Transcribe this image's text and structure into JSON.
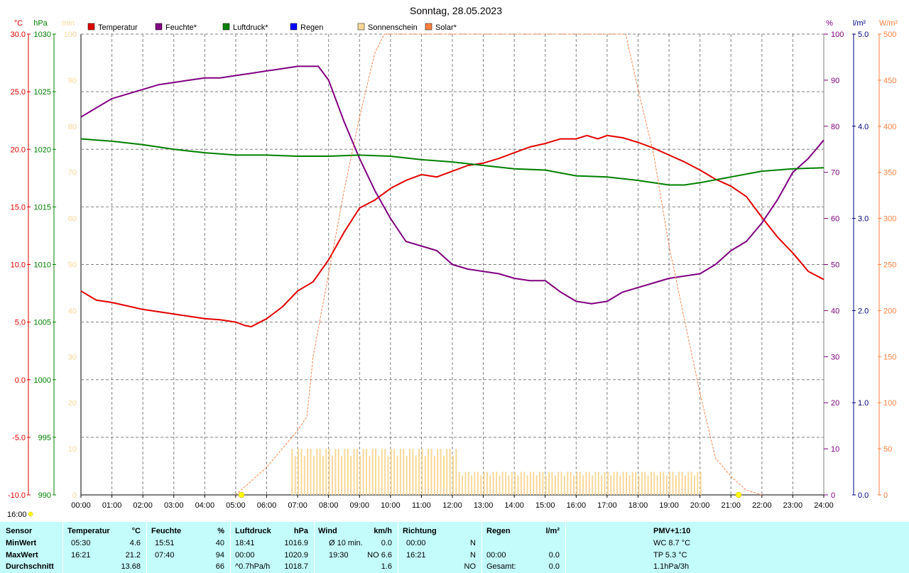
{
  "title": "Sonntag, 28.05.2023",
  "axis_units": {
    "temperature": "°C",
    "pressure": "hPa",
    "sunshine": "min",
    "humidity": "%",
    "rain": "l/m²",
    "solar": "W/m²"
  },
  "legend": [
    {
      "label": "Temperatur",
      "color": "#e00000"
    },
    {
      "label": "Feuchte*",
      "color": "#800080"
    },
    {
      "label": "Luftdruck*",
      "color": "#008000"
    },
    {
      "label": "Regen",
      "color": "#0000ff"
    },
    {
      "label": "Sonnenschein",
      "color": "#f8d898"
    },
    {
      "label": "Solar*",
      "color": "#ff8040"
    }
  ],
  "sunrise_label": "16:00",
  "chart_data": {
    "type": "line",
    "title": "Sonntag, 28.05.2023",
    "x_ticks": [
      "00:00",
      "01:00",
      "02:00",
      "03:00",
      "04:00",
      "05:00",
      "06:00",
      "07:00",
      "08:00",
      "09:00",
      "10:00",
      "11:00",
      "12:00",
      "13:00",
      "14:00",
      "15:00",
      "16:00",
      "17:00",
      "18:00",
      "19:00",
      "20:00",
      "21:00",
      "22:00",
      "23:00",
      "24:00"
    ],
    "xlim_hours": [
      0,
      24
    ],
    "grid": true,
    "legend_position": "top",
    "axes": {
      "temperature": {
        "ticks": [
          "30.0",
          "25.0",
          "20.0",
          "15.0",
          "10.0",
          "5.0",
          "0.0",
          "-5.0",
          "-10.0"
        ],
        "range": [
          -10,
          30
        ]
      },
      "pressure": {
        "ticks": [
          "1030",
          "1025",
          "1020",
          "1015",
          "1010",
          "1005",
          "1000",
          "995",
          "990"
        ],
        "range": [
          990,
          1030
        ]
      },
      "sunshine": {
        "ticks": [
          "100",
          "90",
          "80",
          "70",
          "60",
          "50",
          "40",
          "30",
          "20",
          "10",
          "0"
        ],
        "range": [
          0,
          100
        ]
      },
      "humidity": {
        "ticks": [
          "100",
          "90",
          "80",
          "70",
          "60",
          "50",
          "40",
          "30",
          "20",
          "10",
          "0"
        ],
        "range": [
          0,
          100
        ]
      },
      "rain": {
        "ticks": [
          "5.0",
          "4.0",
          "3.0",
          "2.0",
          "1.0",
          "0.0"
        ],
        "range": [
          0,
          5
        ]
      },
      "solar": {
        "ticks": [
          "500",
          "450",
          "400",
          "350",
          "300",
          "250",
          "200",
          "150",
          "100",
          "50",
          "0"
        ],
        "range": [
          0,
          500
        ]
      }
    },
    "series": [
      {
        "name": "Temperatur",
        "axis": "temperature",
        "color": "#e00000",
        "x": [
          0,
          0.5,
          1,
          1.5,
          2,
          2.5,
          3,
          3.5,
          4,
          4.5,
          5,
          5.3,
          5.5,
          6,
          6.5,
          7,
          7.5,
          8,
          8.5,
          9,
          9.5,
          10,
          10.5,
          11,
          11.5,
          12,
          12.5,
          13,
          13.5,
          14,
          14.5,
          15,
          15.5,
          16,
          16.35,
          16.7,
          17,
          17.5,
          18,
          18.5,
          19,
          19.5,
          20,
          20.5,
          21,
          21.5,
          22,
          22.5,
          23,
          23.5,
          24
        ],
        "y": [
          7.7,
          6.9,
          6.7,
          6.4,
          6.1,
          5.9,
          5.7,
          5.5,
          5.3,
          5.2,
          5.0,
          4.7,
          4.6,
          5.3,
          6.3,
          7.7,
          8.5,
          10.4,
          12.8,
          14.9,
          15.6,
          16.6,
          17.3,
          17.8,
          17.6,
          18.1,
          18.6,
          18.8,
          19.2,
          19.7,
          20.2,
          20.5,
          20.9,
          20.9,
          21.2,
          20.9,
          21.2,
          21.0,
          20.6,
          20.1,
          19.5,
          18.9,
          18.2,
          17.4,
          16.8,
          15.9,
          14.1,
          12.4,
          11.0,
          9.4,
          8.7
        ]
      },
      {
        "name": "Feuchte*",
        "axis": "humidity",
        "color": "#800080",
        "x": [
          0,
          0.5,
          1,
          1.5,
          2,
          2.5,
          3,
          3.5,
          4,
          4.5,
          5,
          5.5,
          6,
          6.5,
          7,
          7.5,
          7.67,
          8,
          8.5,
          9,
          9.5,
          10,
          10.5,
          11,
          11.5,
          12,
          12.5,
          13,
          13.5,
          14,
          14.5,
          15,
          15.5,
          16,
          16.5,
          17,
          17.5,
          18,
          18.5,
          19,
          19.5,
          20,
          20.5,
          21,
          21.5,
          22,
          22.5,
          23,
          23.5,
          24
        ],
        "y": [
          82,
          84,
          86,
          87,
          88,
          89,
          89.5,
          90,
          90.5,
          90.5,
          91,
          91.5,
          92,
          92.5,
          93,
          93,
          93,
          90,
          81,
          73,
          66,
          60,
          55,
          54,
          53,
          50,
          49,
          48.5,
          48,
          47,
          46.5,
          46.5,
          44,
          42,
          41.5,
          42,
          44,
          45,
          46,
          47,
          47.5,
          48,
          50,
          53,
          55,
          59,
          64,
          70,
          73,
          77
        ]
      },
      {
        "name": "Luftdruck*",
        "axis": "pressure",
        "color": "#008000",
        "x": [
          0,
          1,
          2,
          3,
          4,
          5,
          6,
          7,
          8,
          9,
          10,
          11,
          12,
          13,
          14,
          15,
          16,
          17,
          18,
          19,
          19.5,
          20,
          21,
          22,
          23,
          24
        ],
        "y": [
          1020.9,
          1020.7,
          1020.4,
          1020.0,
          1019.7,
          1019.5,
          1019.5,
          1019.4,
          1019.4,
          1019.5,
          1019.4,
          1019.1,
          1018.9,
          1018.6,
          1018.3,
          1018.2,
          1017.7,
          1017.6,
          1017.3,
          1016.9,
          1016.9,
          1017.1,
          1017.6,
          1018.1,
          1018.3,
          1018.4
        ]
      },
      {
        "name": "Solar*",
        "axis": "solar",
        "color": "#ff8040",
        "dashed": true,
        "x": [
          5,
          5.5,
          6,
          6.5,
          7,
          7.3,
          7.5,
          8,
          8.5,
          9,
          9.5,
          9.8,
          17.6,
          18,
          18.5,
          19,
          19.5,
          20,
          20.5,
          21,
          21.5,
          22
        ],
        "y": [
          0,
          15,
          30,
          50,
          70,
          85,
          150,
          240,
          330,
          410,
          480,
          500,
          500,
          440,
          370,
          270,
          190,
          110,
          40,
          20,
          5,
          0
        ]
      },
      {
        "name": "Sonnenschein",
        "axis": "sunshine",
        "color": "#f8d898",
        "bars": [
          {
            "from": 6.8,
            "to": 12.2,
            "value": 10
          },
          {
            "from": 12.2,
            "to": 20.1,
            "value": 5
          }
        ]
      }
    ]
  },
  "stats": {
    "headers": [
      "Sensor",
      "Temperatur",
      "°C",
      "Feuchte",
      "%",
      "Luftdruck",
      "hPa",
      "Wind",
      "km/h",
      "Richtung",
      "Regen",
      "l/m²",
      "PMV+1:10"
    ],
    "rows": [
      {
        "label": "MinWert",
        "temp_time": "05:30",
        "temp_val": "4.6",
        "hum_time": "15:51",
        "hum_val": "40",
        "press_time": "18:41",
        "press_val": "1016.9",
        "wind_label": "Ø 10 min.",
        "wind_val": "0.0",
        "dir_time": "00:00",
        "dir_val": "N",
        "rain_time": "",
        "rain_val": "",
        "pmv": "WC 8.7 °C"
      },
      {
        "label": "MaxWert",
        "temp_time": "16:21",
        "temp_val": "21.2",
        "hum_time": "07:40",
        "hum_val": "94",
        "press_time": "00:00",
        "press_val": "1020.9",
        "wind_label": "19:30",
        "wind_val": "NO 6.6",
        "dir_time": "16:21",
        "dir_val": "N",
        "rain_time": "00:00",
        "rain_val": "0.0",
        "pmv": "TP 5.3 °C"
      },
      {
        "label": "Durchschnitt",
        "temp_time": "",
        "temp_val": "13.68",
        "hum_time": "",
        "hum_val": "66",
        "press_time": "^0.7hPa/h",
        "press_val": "1018.7",
        "wind_label": "",
        "wind_val": "1.6",
        "dir_time": "",
        "dir_val": "NO",
        "rain_time": "Gesamt:",
        "rain_val": "0.0",
        "pmv": "1.1hPa/3h"
      }
    ]
  }
}
